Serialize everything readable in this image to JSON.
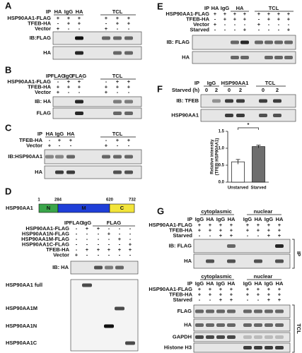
{
  "panels": [
    {
      "letter": "A",
      "ip_label": "IP",
      "ip": [
        "HA",
        "IgG",
        "HA",
        "TCL"
      ],
      "conditions": [
        {
          "label": "HSP90AA1-FLAG",
          "marks": [
            "+",
            "+",
            "+",
            "+",
            "+",
            "+"
          ]
        },
        {
          "label": "TFEB-HA",
          "marks": [
            "-",
            "+",
            "+",
            "-",
            "+",
            "+"
          ]
        },
        {
          "label": "Vector",
          "marks": [
            "+",
            "-",
            "-",
            "+",
            "-",
            "-"
          ]
        }
      ],
      "blots": [
        "IB:FLAG",
        "HA"
      ]
    },
    {
      "letter": "B",
      "ip_label": "IP",
      "ip": [
        "FLAG",
        "IgG",
        "FLAG",
        "TCL"
      ],
      "conditions": [
        {
          "label": "HSP90AA1-FLAG",
          "marks": [
            "-",
            "+",
            "+",
            "-",
            "+",
            "+"
          ]
        },
        {
          "label": "TFEB-HA",
          "marks": [
            "+",
            "+",
            "+",
            "+",
            "+",
            "+"
          ]
        },
        {
          "label": "Vector",
          "marks": [
            "+",
            "-",
            "-",
            "+",
            "-",
            "-"
          ]
        }
      ],
      "blots": [
        "IB: HA",
        "FLAG"
      ]
    },
    {
      "letter": "C",
      "ip_label": "IP",
      "ip": [
        "HA",
        "IgG",
        "HA",
        "TCL"
      ],
      "conditions": [
        {
          "label": "TFEB-HA",
          "marks": [
            "-",
            "+",
            "+",
            "-",
            "+",
            "+"
          ]
        },
        {
          "label": "Vector",
          "marks": [
            "+",
            "-",
            "-",
            "+",
            "-",
            "-"
          ]
        }
      ],
      "blots": [
        "IB:HSP90AA1",
        "HA"
      ]
    },
    {
      "letter": "D",
      "domain": {
        "name": "HSP90AA1",
        "segments": [
          "N",
          "M",
          "C"
        ],
        "positions": [
          1,
          284,
          620,
          732
        ]
      },
      "ip_label": "IP",
      "ip": [
        "FLAG",
        "IgG",
        "FLAG"
      ],
      "conditions": [
        {
          "label": "HSP90AA1-FLAG",
          "marks": [
            "-",
            "+",
            "+",
            "-",
            "-",
            "-"
          ]
        },
        {
          "label": "HSP90AA1N-FLAG",
          "marks": [
            "-",
            "-",
            "-",
            "+",
            "-",
            "-"
          ]
        },
        {
          "label": "HSP90AA1M-FLAG",
          "marks": [
            "-",
            "-",
            "-",
            "-",
            "+",
            "-"
          ]
        },
        {
          "label": "HSP90AA1C-FLAG",
          "marks": [
            "-",
            "-",
            "-",
            "-",
            "-",
            "+"
          ]
        },
        {
          "label": "TFEB-HA",
          "marks": [
            "-",
            "+",
            "+",
            "+",
            "+",
            "+"
          ]
        },
        {
          "label": "Vector",
          "marks": [
            "+",
            "-",
            "-",
            "-",
            "-",
            "-"
          ]
        }
      ],
      "blots": [
        "IB: HA"
      ],
      "bands": [
        "HSP90AA1 full",
        "HSP90AA1M",
        "HSP90AA1N",
        "HSP90AA1C"
      ]
    },
    {
      "letter": "E",
      "ip_label": "IP",
      "ip": [
        "HA",
        "IgG",
        "HA",
        "TCL"
      ],
      "conditions": [
        {
          "label": "HSP90AA1-FLAG",
          "marks": [
            "+",
            "+",
            "+",
            "+",
            "+",
            "+",
            "+",
            "+"
          ]
        },
        {
          "label": "TFEB-HA",
          "marks": [
            "-",
            "+",
            "+",
            "+",
            "-",
            "+",
            "+",
            "+"
          ]
        },
        {
          "label": "Vector",
          "marks": [
            "+",
            "-",
            "-",
            "-",
            "+",
            "-",
            "-",
            "-"
          ]
        },
        {
          "label": "Starved",
          "marks": [
            "-",
            "-",
            "-",
            "+",
            "-",
            "-",
            "-",
            "+"
          ]
        }
      ],
      "blots": [
        "IB: FLAG",
        "HA"
      ]
    },
    {
      "letter": "F",
      "ip_label": "IP",
      "ip": [
        "IgG",
        "HSP90AA1",
        "TCL"
      ],
      "conditions": [
        {
          "label": "Starved (h)",
          "marks": [
            0,
            2,
            0,
            2,
            0,
            2
          ]
        }
      ],
      "blots": [
        "IB: TFEB",
        "HSP90AA1"
      ]
    },
    {
      "letter": "G",
      "sections": [
        {
          "groups": [
            "cytoplasmic",
            "nuclear"
          ],
          "ip_label": "IP",
          "ip": [
            "IgG",
            "HA",
            "IgG",
            "HA",
            "IgG",
            "HA",
            "IgG",
            "HA"
          ],
          "conditions": [
            {
              "label": "HSP90AA1-FLAG",
              "marks": [
                "+",
                "+",
                "+",
                "+",
                "+",
                "+",
                "+",
                "+"
              ]
            },
            {
              "label": "TFEB-HA",
              "marks": [
                "+",
                "+",
                "+",
                "+",
                "+",
                "+",
                "+",
                "+"
              ]
            },
            {
              "label": "Starved",
              "marks": [
                "-",
                "-",
                "+",
                "+",
                "-",
                "-",
                "+",
                "+"
              ]
            }
          ],
          "blots": [
            "IB: FLAG",
            "HA"
          ],
          "bracket": "IP"
        },
        {
          "groups": [
            "cytoplasmic",
            "nuclear"
          ],
          "ip_label": "IP",
          "ip": [
            "IgG",
            "HA",
            "IgG",
            "HA",
            "IgG",
            "HA",
            "IgG",
            "HA"
          ],
          "conditions": [
            {
              "label": "HSP90AA1-FLAG",
              "marks": [
                "+",
                "+",
                "+",
                "+",
                "+",
                "+",
                "+",
                "+"
              ]
            },
            {
              "label": "TFEB-HA",
              "marks": [
                "+",
                "+",
                "+",
                "+",
                "+",
                "+",
                "+",
                "+"
              ]
            },
            {
              "label": "Starved",
              "marks": [
                "-",
                "-",
                "+",
                "+",
                "-",
                "-",
                "+",
                "+"
              ]
            }
          ],
          "blots": [
            "FLAG",
            "HA",
            "GAPDH",
            "Histone H3"
          ],
          "bracket": "TCL"
        }
      ]
    }
  ],
  "chart_data": {
    "type": "bar",
    "ylabel": [
      "Relative intensity",
      "(TFEB:HSP90AA1)"
    ],
    "categories": [
      "Unstarved",
      "Starved"
    ],
    "values": [
      0.6,
      1.05
    ],
    "errors": [
      0.07,
      0.04
    ],
    "colors": [
      "#ffffff",
      "#6e6e6e"
    ],
    "annotation": "*",
    "ylim": [
      0,
      1.5
    ],
    "yticks": [
      {
        "value": 0,
        "label": "0.0"
      },
      0.5,
      {
        "value": 1,
        "label": "1.0"
      },
      1.5
    ]
  }
}
